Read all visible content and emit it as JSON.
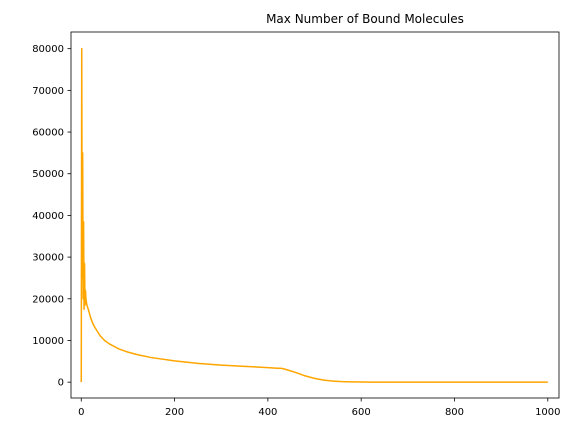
{
  "chart_data": {
    "type": "line",
    "title": "Max Number of Bound Molecules",
    "xlabel": "",
    "ylabel": "",
    "xlim": [
      -22,
      1024
    ],
    "ylim": [
      -3800,
      84000
    ],
    "x_ticks": [
      0,
      200,
      400,
      600,
      800,
      1000
    ],
    "y_ticks": [
      0,
      10000,
      20000,
      30000,
      40000,
      50000,
      60000,
      70000,
      80000
    ],
    "grid": false,
    "legend": "none",
    "series": [
      {
        "color": "#FFA500",
        "x": [
          0,
          1,
          2,
          3,
          4,
          5,
          6,
          7,
          8,
          9,
          10,
          12,
          15,
          20,
          25,
          30,
          40,
          50,
          60,
          80,
          100,
          120,
          150,
          200,
          250,
          300,
          350,
          400,
          420,
          430,
          440,
          460,
          480,
          500,
          520,
          540,
          560,
          580,
          600,
          620,
          650,
          700,
          800,
          900,
          1000
        ],
        "y": [
          0,
          80000,
          25000,
          55000,
          20000,
          38500,
          17500,
          28500,
          18500,
          22000,
          20000,
          18500,
          17500,
          15500,
          14000,
          13000,
          11200,
          10000,
          9200,
          8000,
          7200,
          6600,
          5900,
          5100,
          4500,
          4100,
          3800,
          3500,
          3350,
          3300,
          3000,
          2300,
          1500,
          900,
          500,
          250,
          120,
          60,
          30,
          15,
          5,
          2,
          0,
          0,
          0
        ]
      }
    ]
  }
}
